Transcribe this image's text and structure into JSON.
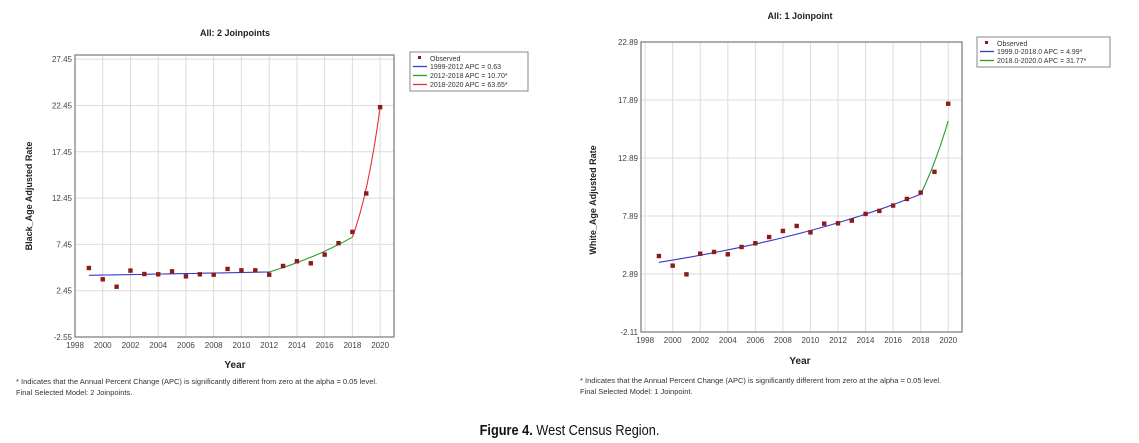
{
  "chart_data": [
    {
      "type": "scatter",
      "title": "All: 2 Joinpoints",
      "xlabel": "Year",
      "ylabel": "Black_Age Adjusted Rate",
      "xlim": [
        1998,
        2021
      ],
      "ylim": [
        -2.55,
        27.9
      ],
      "xticks": [
        "1998",
        "2000",
        "2002",
        "2004",
        "2006",
        "2008",
        "2010",
        "2012",
        "2014",
        "2016",
        "2018",
        "2020"
      ],
      "yticks": [
        "-2.55",
        "2.45",
        "7.45",
        "12.45",
        "17.45",
        "22.45",
        "27.45"
      ],
      "grid": true,
      "legend_position": "right",
      "observed_label": "Observed",
      "observed_color": "#8b1a1a",
      "x": [
        1999,
        2000,
        2001,
        2002,
        2003,
        2004,
        2005,
        2006,
        2007,
        2008,
        2009,
        2010,
        2011,
        2012,
        2013,
        2014,
        2015,
        2016,
        2017,
        2018,
        2019,
        2020
      ],
      "observed": [
        4.9,
        3.68,
        2.88,
        4.62,
        4.25,
        4.22,
        4.54,
        4.0,
        4.22,
        4.18,
        4.8,
        4.65,
        4.65,
        4.18,
        5.12,
        5.63,
        5.41,
        6.35,
        7.58,
        8.8,
        12.95,
        22.27
      ],
      "segments": [
        {
          "label": "1999-2012 APC  =  0.63",
          "color": "#3a3ac8",
          "x": [
            1999,
            2012
          ],
          "y": [
            4.11,
            4.47
          ]
        },
        {
          "label": "2012-2018 APC  = 10.70*",
          "color": "#2e9a2e",
          "x": [
            2012,
            2018
          ],
          "y": [
            4.47,
            8.23
          ]
        },
        {
          "label": "2018-2020 APC  = 63.65*",
          "color": "#e83030",
          "x": [
            2018,
            2020
          ],
          "y": [
            8.23,
            22.3
          ]
        }
      ],
      "footnote": [
        "* Indicates that the Annual Percent Change (APC) is significantly different from zero at the alpha = 0.05 level.",
        "Final Selected Model: 2 Joinpoints."
      ]
    },
    {
      "type": "scatter",
      "title": "All: 1 Joinpoint",
      "xlabel": "Year",
      "ylabel": "White_Age Adjusted Rate",
      "xlim": [
        1997.7,
        2021
      ],
      "ylim": [
        -2.11,
        22.89
      ],
      "xticks": [
        "1998",
        "2000",
        "2002",
        "2004",
        "2006",
        "2008",
        "2010",
        "2012",
        "2014",
        "2016",
        "2018",
        "2020"
      ],
      "yticks": [
        "-2.11",
        "2.89",
        "7.89",
        "12.89",
        "17.89",
        "22.89"
      ],
      "grid": true,
      "legend_position": "right",
      "observed_label": "Observed",
      "observed_color": "#8b1a1a",
      "x": [
        1999,
        2000,
        2001,
        2002,
        2003,
        2004,
        2005,
        2006,
        2007,
        2008,
        2009,
        2010,
        2011,
        2012,
        2013,
        2014,
        2015,
        2016,
        2017,
        2018,
        2019,
        2020
      ],
      "observed": [
        4.44,
        3.61,
        2.86,
        4.64,
        4.79,
        4.59,
        5.22,
        5.54,
        6.08,
        6.6,
        7.03,
        6.48,
        7.23,
        7.26,
        7.49,
        8.07,
        8.33,
        8.79,
        9.36,
        9.91,
        11.7,
        17.57
      ],
      "segments": [
        {
          "label": "1999.0-2018.0 APC  =  4.99*",
          "color": "#3a3ac8",
          "x": [
            1999,
            2018
          ],
          "y": [
            3.9,
            9.77
          ]
        },
        {
          "label": "2018.0-2020.0 APC  = 31.77*",
          "color": "#2e9a2e",
          "x": [
            2018,
            2020
          ],
          "y": [
            9.77,
            16.1
          ]
        }
      ],
      "footnote": [
        "* Indicates that the Annual Percent Change (APC) is significantly different from zero at the alpha = 0.05 level.",
        "Final Selected Model: 1 Joinpoint."
      ]
    }
  ],
  "caption": {
    "label": "Figure 4.",
    "text": " West Census Region."
  }
}
